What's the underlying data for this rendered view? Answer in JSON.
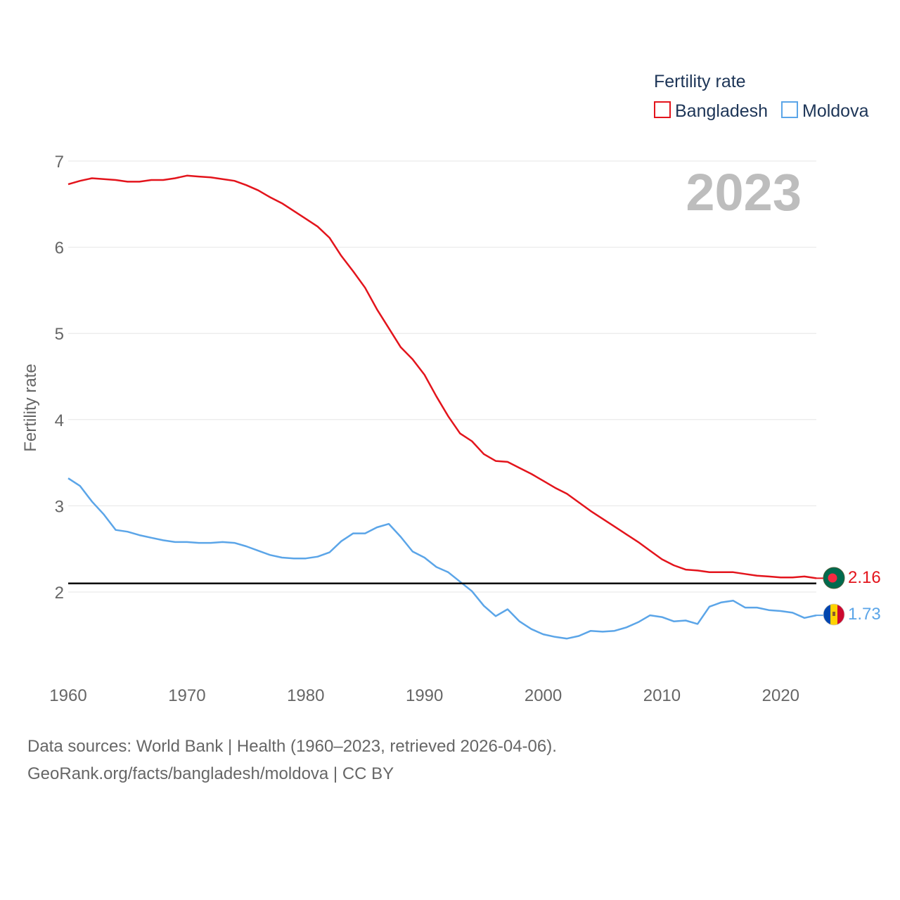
{
  "chart_data": {
    "type": "line",
    "title": "",
    "legend_title": "Fertility rate",
    "year_label": "2023",
    "ylabel": "Fertility rate",
    "xlabel": "",
    "xlim": [
      1960,
      2023
    ],
    "ylim": [
      1.0,
      7.0
    ],
    "x_ticks": [
      1960,
      1970,
      1980,
      1990,
      2000,
      2010,
      2020
    ],
    "y_ticks": [
      2,
      3,
      4,
      5,
      6,
      7
    ],
    "reference_line": 2.1,
    "legend_position": "top-right",
    "x": [
      1960,
      1961,
      1962,
      1963,
      1964,
      1965,
      1966,
      1967,
      1968,
      1969,
      1970,
      1971,
      1972,
      1973,
      1974,
      1975,
      1976,
      1977,
      1978,
      1979,
      1980,
      1981,
      1982,
      1983,
      1984,
      1985,
      1986,
      1987,
      1988,
      1989,
      1990,
      1991,
      1992,
      1993,
      1994,
      1995,
      1996,
      1997,
      1998,
      1999,
      2000,
      2001,
      2002,
      2003,
      2004,
      2005,
      2006,
      2007,
      2008,
      2009,
      2010,
      2011,
      2012,
      2013,
      2014,
      2015,
      2016,
      2017,
      2018,
      2019,
      2020,
      2021,
      2022,
      2023
    ],
    "series": [
      {
        "name": "Bangladesh",
        "color": "#e3141c",
        "end_label": "2.16",
        "flag_icon": "flag-bangladesh-icon",
        "values": [
          6.73,
          6.77,
          6.8,
          6.79,
          6.78,
          6.76,
          6.76,
          6.78,
          6.78,
          6.8,
          6.83,
          6.82,
          6.81,
          6.79,
          6.77,
          6.72,
          6.66,
          6.58,
          6.51,
          6.42,
          6.33,
          6.24,
          6.11,
          5.9,
          5.72,
          5.53,
          5.28,
          5.06,
          4.84,
          4.7,
          4.52,
          4.27,
          4.04,
          3.84,
          3.75,
          3.6,
          3.52,
          3.51,
          3.44,
          3.37,
          3.29,
          3.21,
          3.14,
          3.04,
          2.94,
          2.85,
          2.76,
          2.67,
          2.58,
          2.48,
          2.38,
          2.31,
          2.26,
          2.25,
          2.23,
          2.23,
          2.23,
          2.21,
          2.19,
          2.18,
          2.17,
          2.17,
          2.18,
          2.16
        ]
      },
      {
        "name": "Moldova",
        "color": "#5ba5e8",
        "end_label": "1.73",
        "flag_icon": "flag-moldova-icon",
        "values": [
          3.32,
          3.23,
          3.05,
          2.9,
          2.72,
          2.7,
          2.66,
          2.63,
          2.6,
          2.58,
          2.58,
          2.57,
          2.57,
          2.58,
          2.57,
          2.53,
          2.48,
          2.43,
          2.4,
          2.39,
          2.39,
          2.41,
          2.46,
          2.59,
          2.68,
          2.68,
          2.75,
          2.79,
          2.64,
          2.47,
          2.4,
          2.29,
          2.23,
          2.12,
          2.01,
          1.84,
          1.72,
          1.8,
          1.66,
          1.57,
          1.51,
          1.48,
          1.46,
          1.49,
          1.55,
          1.54,
          1.55,
          1.59,
          1.65,
          1.73,
          1.71,
          1.66,
          1.67,
          1.63,
          1.83,
          1.88,
          1.9,
          1.82,
          1.82,
          1.79,
          1.78,
          1.76,
          1.7,
          1.73
        ]
      }
    ]
  },
  "footer": {
    "line1": "Data sources: World Bank | Health (1960–2023, retrieved 2026-04-06).",
    "line2": "GeoRank.org/facts/bangladesh/moldova | CC BY"
  }
}
